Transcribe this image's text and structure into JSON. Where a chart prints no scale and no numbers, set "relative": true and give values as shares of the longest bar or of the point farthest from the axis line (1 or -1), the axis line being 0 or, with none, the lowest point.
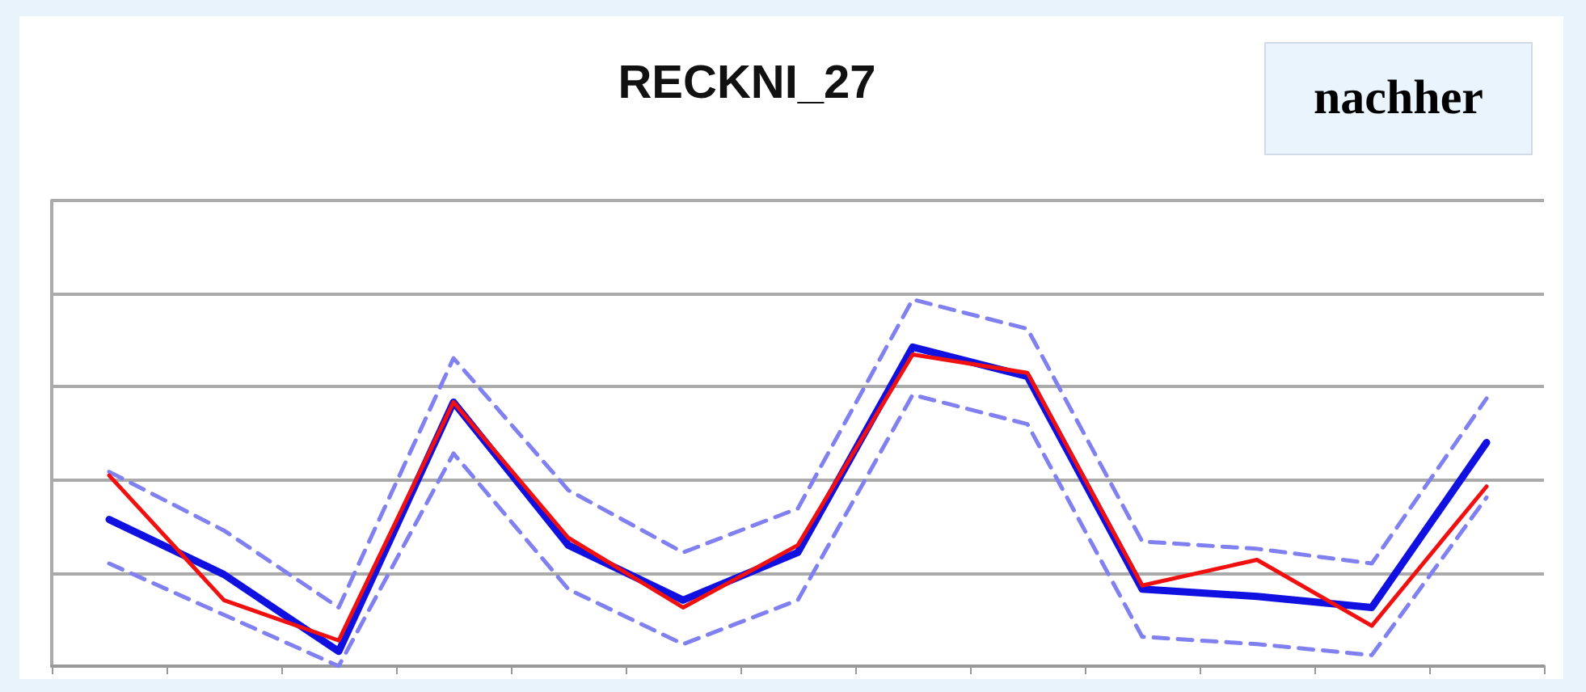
{
  "chart_data": {
    "type": "line",
    "title": "RECKNI_27",
    "annotations": [
      "nachher"
    ],
    "relative": true,
    "grid": "y",
    "marker": "none",
    "categories": [
      null,
      null,
      null,
      null,
      null,
      null,
      null,
      null,
      null,
      null,
      null,
      null,
      null
    ],
    "series": [
      {
        "color": "#8080f0",
        "line_style": "dashed",
        "values": [
          0.53,
          0.37,
          0.16,
          0.84,
          0.48,
          0.31,
          0.43,
          1,
          0.92,
          0.34,
          0.32,
          0.28,
          0.73
        ]
      },
      {
        "color": "#8080f0",
        "line_style": "dashed",
        "values": [
          0.28,
          0.14,
          0,
          0.58,
          0.21,
          0.06,
          0.18,
          0.74,
          0.66,
          0.08,
          0.06,
          0.03,
          0.46
        ]
      },
      {
        "color": "#1010e0",
        "line_style": "solid",
        "values": [
          0.4,
          0.25,
          0.04,
          0.72,
          0.33,
          0.18,
          0.31,
          0.87,
          0.79,
          0.21,
          0.19,
          0.16,
          0.61
        ]
      },
      {
        "color": "#f01010",
        "line_style": "solid",
        "values": [
          0.52,
          0.18,
          0.07,
          0.72,
          0.35,
          0.16,
          0.33,
          0.85,
          0.8,
          0.22,
          0.29,
          0.11,
          0.49
        ]
      }
    ]
  }
}
